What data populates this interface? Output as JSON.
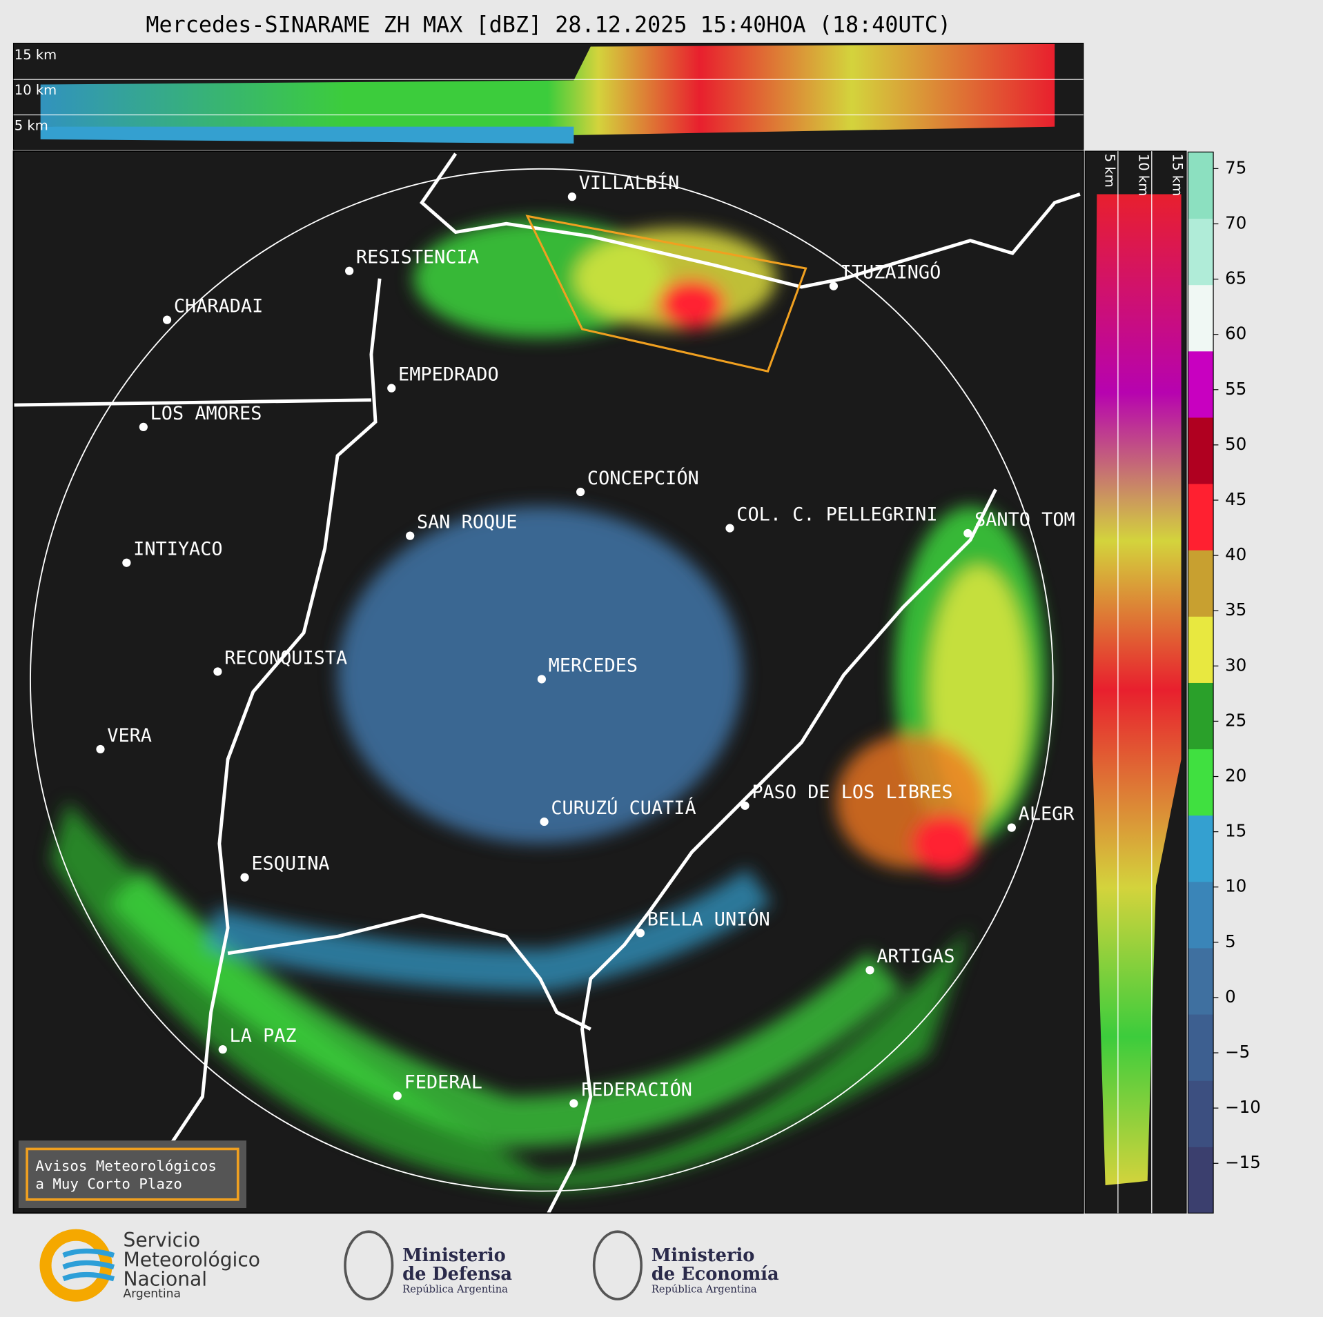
{
  "title": "Mercedes-SINARAME ZH MAX [dBZ] 28.12.2025 15:40HOA (18:40UTC)",
  "top_panel": {
    "altitude_labels": [
      "15 km",
      "10 km",
      "5 km"
    ]
  },
  "side_panel": {
    "altitude_labels": [
      "5 km",
      "10 km",
      "15 km"
    ]
  },
  "cities": [
    "VILLALBÍN",
    "RESISTENCIA",
    "CHARADAI",
    "ITUZAINGÓ",
    "EMPEDRADO",
    "LOS AMORES",
    "CONCEPCIÓN",
    "COL. C. PELLEGRINI",
    "SANTO TOM",
    "SAN ROQUE",
    "INTIYACO",
    "RECONQUISTA",
    "MERCEDES",
    "VERA",
    "CURUZÚ CUATIÁ",
    "PASO DE LOS LIBRES",
    "ALEGR",
    "ESQUINA",
    "BELLA UNIÓN",
    "ARTIGAS",
    "LA PAZ",
    "FEDERAL",
    "FEDERACIÓN"
  ],
  "colorbar": {
    "lim": [
      -19.5,
      76.5
    ],
    "ticks": [
      75,
      70,
      65,
      60,
      55,
      50,
      45,
      40,
      35,
      30,
      25,
      20,
      15,
      10,
      5,
      0,
      {
        "value": -5,
        "label": "−5"
      },
      {
        "value": -10,
        "label": "−10"
      },
      {
        "value": -15,
        "label": "−15"
      }
    ],
    "colors": [
      "#3b3f6e",
      "#3c4f80",
      "#3d5f90",
      "#3f70a0",
      "#3a85b8",
      "#34a0d0",
      "#40e040",
      "#2aa02a",
      "#e8e840",
      "#c8a030",
      "#ff2030",
      "#b00020",
      "#c800c0",
      "#f0f8f4",
      "#b0ecd8",
      "#8ce0c0"
    ]
  },
  "notice": [
    "Avisos Meteorológicos",
    "a Muy Corto Plazo"
  ],
  "logos": {
    "smn": [
      "Servicio",
      "Meteorológico",
      "Nacional",
      "Argentina"
    ],
    "defensa": [
      "Ministerio",
      "de Defensa",
      "República Argentina"
    ],
    "economia": [
      "Ministerio",
      "de Economía",
      "República Argentina"
    ]
  }
}
